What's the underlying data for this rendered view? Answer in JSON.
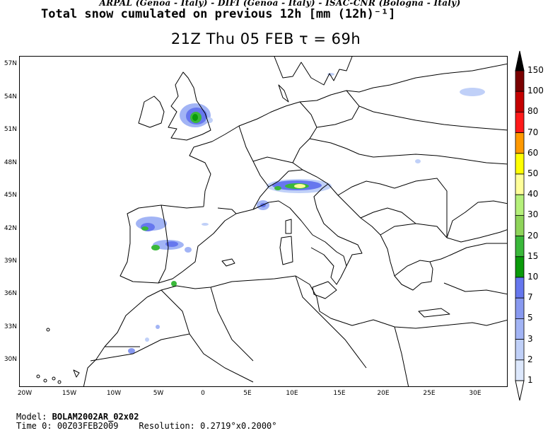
{
  "header": {
    "credits": "ARPAL (Genoa - Italy)  -  DIFI (Genoa - Italy)  -  ISAC-CNR (Bologna - Italy)",
    "title": "Total snow cumulated on previous 12h [mm (12h)⁻¹]",
    "valid_time": "21Z Thu 05 FEB  τ = 69h"
  },
  "axes": {
    "latitudes": [
      "57N",
      "54N",
      "51N",
      "48N",
      "45N",
      "42N",
      "39N",
      "36N",
      "33N",
      "30N"
    ],
    "longitudes": [
      "20W",
      "15W",
      "10W",
      "5W",
      "0",
      "5E",
      "10E",
      "15E",
      "20E",
      "25E",
      "30E"
    ]
  },
  "colorbar": {
    "levels": [
      "150",
      "100",
      "80",
      "70",
      "60",
      "50",
      "40",
      "30",
      "20",
      "15",
      "10",
      "7",
      "5",
      "3",
      "2",
      "1"
    ],
    "colors": [
      "#000000",
      "#7a0000",
      "#c40000",
      "#ff1a1a",
      "#ff9900",
      "#ffff00",
      "#ffff99",
      "#b5f07a",
      "#8fd45a",
      "#3ab83a",
      "#0a9a0a",
      "#6677ee",
      "#8899f0",
      "#a2b4f5",
      "#c0d0f8",
      "#dde8fc",
      "#ffffff"
    ]
  },
  "footer": {
    "model_label": "Model:",
    "model_value": "BOLAM2002AR_02x02",
    "time_label": "Time 0:",
    "time_value": "00Z03FEB2009",
    "resolution_label": "Resolution:",
    "resolution_value": "0.2719°x0.2000°"
  }
}
